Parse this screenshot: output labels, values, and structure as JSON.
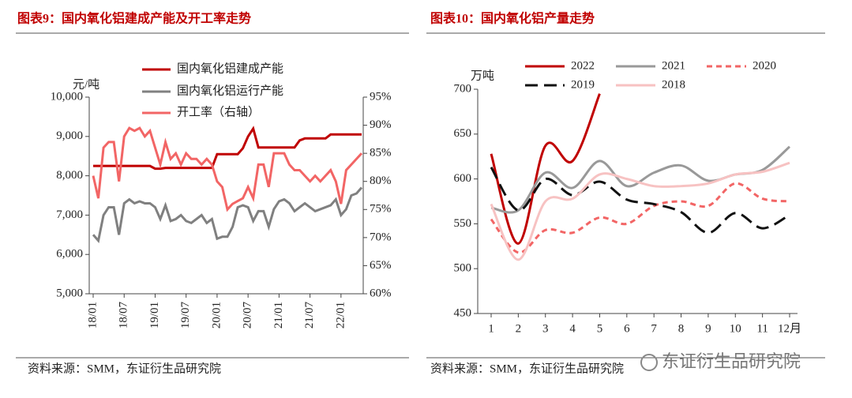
{
  "watermark": "东证衍生品研究院",
  "chart_data": [
    {
      "type": "line",
      "title": "图表9：国内氧化铝建成产能及开工率走势",
      "ylabel": "元/吨",
      "source": "资料来源：SMM，东证衍生品研究院",
      "categories": [
        "18/01",
        null,
        null,
        null,
        null,
        null,
        "18/07",
        null,
        null,
        null,
        null,
        null,
        "19/01",
        null,
        null,
        null,
        null,
        null,
        "19/07",
        null,
        null,
        null,
        null,
        null,
        "20/01",
        null,
        null,
        null,
        null,
        null,
        "20/07",
        null,
        null,
        null,
        null,
        null,
        "21/01",
        null,
        null,
        null,
        null,
        null,
        "21/07",
        null,
        null,
        null,
        null,
        null,
        "22/01",
        null,
        null,
        null,
        null
      ],
      "ylim": [
        5000,
        10000
      ],
      "yticks": [
        {
          "value": 5000,
          "label": "5,000"
        },
        {
          "value": 6000,
          "label": "6,000"
        },
        {
          "value": 7000,
          "label": "7,000"
        },
        {
          "value": 8000,
          "label": "8,000"
        },
        {
          "value": 9000,
          "label": "9,000"
        },
        {
          "value": 10000,
          "label": "10,000"
        }
      ],
      "y2lim": [
        60,
        95
      ],
      "y2ticks": [
        {
          "value": 60,
          "label": "60%"
        },
        {
          "value": 65,
          "label": "65%"
        },
        {
          "value": 70,
          "label": "70%"
        },
        {
          "value": 75,
          "label": "75%"
        },
        {
          "value": 80,
          "label": "80%"
        },
        {
          "value": 85,
          "label": "85%"
        },
        {
          "value": 90,
          "label": "90%"
        },
        {
          "value": 95,
          "label": "95%"
        }
      ],
      "series": [
        {
          "name": "国内氧化铝建成产能",
          "color": "#c00000",
          "line_style": "solid",
          "values": [
            8250,
            8250,
            8250,
            8250,
            8250,
            8250,
            8250,
            8250,
            8250,
            8250,
            8250,
            8250,
            8180,
            8180,
            8200,
            8200,
            8200,
            8200,
            8200,
            8200,
            8200,
            8200,
            8200,
            8200,
            8550,
            8550,
            8550,
            8550,
            8550,
            8700,
            9000,
            9200,
            8720,
            8720,
            8720,
            8720,
            8720,
            8720,
            8720,
            8720,
            8900,
            8950,
            8950,
            8950,
            8950,
            8950,
            9050,
            9050,
            9050,
            9050,
            9050,
            9050,
            9050
          ]
        },
        {
          "name": "国内氧化铝运行产能",
          "color": "#808080",
          "line_style": "solid",
          "values": [
            6500,
            6350,
            7000,
            7200,
            7200,
            6500,
            7300,
            7400,
            7300,
            7350,
            7300,
            7300,
            7200,
            6900,
            7250,
            6850,
            6900,
            7000,
            6850,
            6800,
            6900,
            7000,
            6800,
            6900,
            6400,
            6450,
            6450,
            6700,
            7200,
            7250,
            7200,
            6850,
            7100,
            7100,
            6700,
            7150,
            7350,
            7400,
            7300,
            7100,
            7200,
            7300,
            7200,
            7100,
            7150,
            7200,
            7250,
            7400,
            7000,
            7150,
            7500,
            7550,
            7700
          ]
        },
        {
          "name": "开工率（右轴）",
          "color": "#f26565",
          "line_style": "solid",
          "axis": "y2",
          "values": [
            81,
            77,
            86,
            87,
            87,
            80,
            88,
            89.5,
            89,
            89.5,
            88,
            89,
            86,
            83,
            87,
            84,
            85,
            83,
            85,
            84,
            84,
            83,
            84,
            83,
            80,
            79,
            75,
            76,
            76.5,
            77,
            79,
            77,
            83,
            83,
            79,
            85,
            85,
            85,
            83,
            82,
            82,
            81,
            80,
            81,
            80,
            81,
            82,
            80,
            76,
            82,
            83,
            84,
            85
          ]
        }
      ]
    },
    {
      "type": "smooth-line",
      "title": "图表10：国内氧化铝产量走势",
      "ylabel": "万吨",
      "source": "资料来源：SMM，东证衍生品研究院",
      "categories": [
        "1",
        "2",
        "3",
        "4",
        "5",
        "6",
        "7",
        "8",
        "9",
        "10",
        "11",
        "12月"
      ],
      "ylim": [
        450,
        700
      ],
      "yticks": [
        450,
        500,
        550,
        600,
        650,
        700
      ],
      "series": [
        {
          "name": "2022",
          "color": "#c00000",
          "line_style": "solid",
          "values": [
            628,
            528,
            637,
            620,
            695,
            null,
            null,
            null,
            null,
            null,
            null,
            null
          ]
        },
        {
          "name": "2021",
          "color": "#999999",
          "line_style": "solid",
          "values": [
            568,
            565,
            607,
            590,
            620,
            592,
            607,
            615,
            598,
            605,
            610,
            636
          ]
        },
        {
          "name": "2020",
          "color": "#f26565",
          "line_style": "dashed",
          "values": [
            555,
            518,
            543,
            540,
            557,
            550,
            570,
            575,
            570,
            595,
            578,
            575
          ]
        },
        {
          "name": "2019",
          "color": "#111111",
          "line_style": "long-dashed",
          "values": [
            613,
            565,
            600,
            582,
            597,
            577,
            572,
            563,
            540,
            562,
            545,
            560
          ]
        },
        {
          "name": "2018",
          "color": "#f7c2c2",
          "line_style": "solid",
          "values": [
            572,
            510,
            575,
            578,
            605,
            600,
            592,
            592,
            595,
            605,
            608,
            618
          ]
        }
      ]
    }
  ]
}
